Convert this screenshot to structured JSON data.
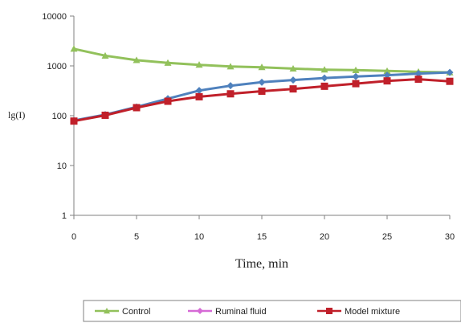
{
  "chart_data": {
    "type": "line",
    "title": "",
    "xlabel": "Time, min",
    "ylabel": "lg(I)",
    "y_scale": "log",
    "xlim": [
      0,
      30
    ],
    "ylim": [
      1,
      10000
    ],
    "x_ticks": [
      "0",
      "5",
      "10",
      "15",
      "20",
      "25",
      "30"
    ],
    "y_ticks": [
      "1",
      "10",
      "100",
      "1000",
      "10000"
    ],
    "grid": false,
    "legend_position": "bottom",
    "x": [
      0,
      2.5,
      5,
      7.5,
      10,
      12.5,
      15,
      17.5,
      20,
      22.5,
      25,
      27.5,
      30
    ],
    "series": [
      {
        "name": "Control",
        "color": "#92c15b",
        "marker": "triangle",
        "values": [
          2200,
          1600,
          1300,
          1150,
          1050,
          970,
          940,
          880,
          840,
          820,
          790,
          760,
          740
        ]
      },
      {
        "name": "Ruminal fluid",
        "color": "#4f81bd",
        "legend_color": "#d66ad6",
        "marker": "diamond",
        "values": [
          80,
          105,
          150,
          220,
          320,
          400,
          470,
          520,
          570,
          610,
          650,
          700,
          740
        ]
      },
      {
        "name": "Model mixture",
        "color": "#c0202a",
        "marker": "square",
        "values": [
          78,
          102,
          145,
          195,
          240,
          275,
          310,
          345,
          390,
          440,
          500,
          540,
          490
        ]
      }
    ]
  }
}
